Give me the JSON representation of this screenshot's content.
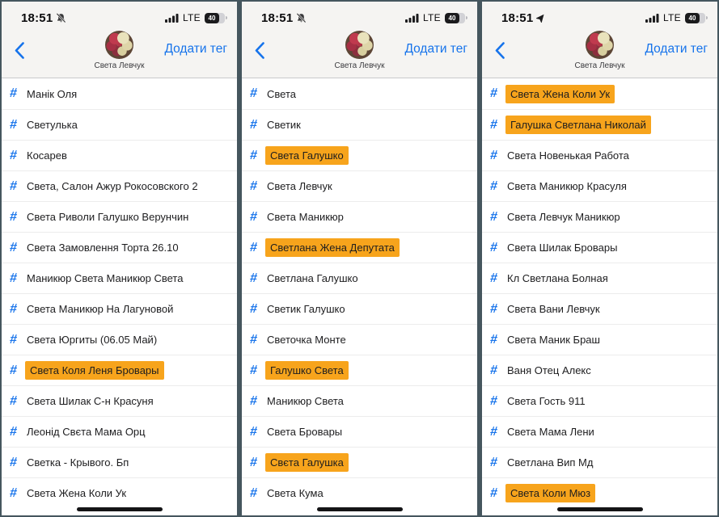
{
  "colors": {
    "accent": "#1673EB",
    "highlight": "#F7A41C",
    "frame": "#45565E"
  },
  "icons": {
    "hashtag": "#"
  },
  "panels": [
    {
      "status": {
        "time": "18:51",
        "icon": "bell-slash",
        "network": "LTE",
        "battery": "40"
      },
      "header": {
        "title": "Света Левчук",
        "add_tag_label": "Додати тег"
      },
      "tags": [
        {
          "label": "Манік Оля",
          "highlighted": false
        },
        {
          "label": "Светулька",
          "highlighted": false
        },
        {
          "label": "Косарев",
          "highlighted": false
        },
        {
          "label": "Света, Салон Ажур Рокосовского 2",
          "highlighted": false
        },
        {
          "label": "Света Риволи Галушко Верунчин",
          "highlighted": false
        },
        {
          "label": "Света Замовлення Торта 26.10",
          "highlighted": false
        },
        {
          "label": "Маникюр Света Маникюр Света",
          "highlighted": false
        },
        {
          "label": "Света Маникюр На Лагуновой",
          "highlighted": false
        },
        {
          "label": "Света Юргиты (06.05 Май)",
          "highlighted": false
        },
        {
          "label": "Света Коля Леня Бровары",
          "highlighted": true
        },
        {
          "label": "Света Шилак С-н Красуня",
          "highlighted": false
        },
        {
          "label": "Леонід Свєта Мама Орц",
          "highlighted": false
        },
        {
          "label": "Светка - Крывого. Бп",
          "highlighted": false
        },
        {
          "label": "Света Жена Коли Ук",
          "highlighted": false
        }
      ]
    },
    {
      "status": {
        "time": "18:51",
        "icon": "bell-slash",
        "network": "LTE",
        "battery": "40"
      },
      "header": {
        "title": "Света Левчук",
        "add_tag_label": "Додати тег"
      },
      "tags": [
        {
          "label": "Света",
          "highlighted": false
        },
        {
          "label": "Светик",
          "highlighted": false
        },
        {
          "label": "Света Галушко",
          "highlighted": true
        },
        {
          "label": "Света Левчук",
          "highlighted": false
        },
        {
          "label": "Света Маникюр",
          "highlighted": false
        },
        {
          "label": "Светлана Жена Депутата",
          "highlighted": true
        },
        {
          "label": "Светлана Галушко",
          "highlighted": false
        },
        {
          "label": "Светик Галушко",
          "highlighted": false
        },
        {
          "label": "Светочка Монте",
          "highlighted": false
        },
        {
          "label": "Галушко Света",
          "highlighted": true
        },
        {
          "label": "Маникюр Света",
          "highlighted": false
        },
        {
          "label": "Света Бровары",
          "highlighted": false
        },
        {
          "label": "Свєта Галушка",
          "highlighted": true
        },
        {
          "label": "Света Кума",
          "highlighted": false
        }
      ]
    },
    {
      "status": {
        "time": "18:51",
        "icon": "location-arrow",
        "network": "LTE",
        "battery": "40"
      },
      "header": {
        "title": "Света Левчук",
        "add_tag_label": "Додати тег"
      },
      "tags": [
        {
          "label": "Света Жена Коли Ук",
          "highlighted": true
        },
        {
          "label": "Галушка Светлана Николай",
          "highlighted": true
        },
        {
          "label": "Света Новенькая Работа",
          "highlighted": false
        },
        {
          "label": "Света Маникюр Красуля",
          "highlighted": false
        },
        {
          "label": "Света Левчук Маникюр",
          "highlighted": false
        },
        {
          "label": "Света Шилак Бровары",
          "highlighted": false
        },
        {
          "label": "Кл Светлана Болная",
          "highlighted": false
        },
        {
          "label": "Света Вани Левчук",
          "highlighted": false
        },
        {
          "label": "Света Маник Браш",
          "highlighted": false
        },
        {
          "label": "Ваня Отец Алекс",
          "highlighted": false
        },
        {
          "label": "Света Гость 911",
          "highlighted": false
        },
        {
          "label": "Света Мама Лени",
          "highlighted": false
        },
        {
          "label": "Светлана Вип Мд",
          "highlighted": false
        },
        {
          "label": "Света Коли Мюз",
          "highlighted": true
        }
      ]
    }
  ]
}
